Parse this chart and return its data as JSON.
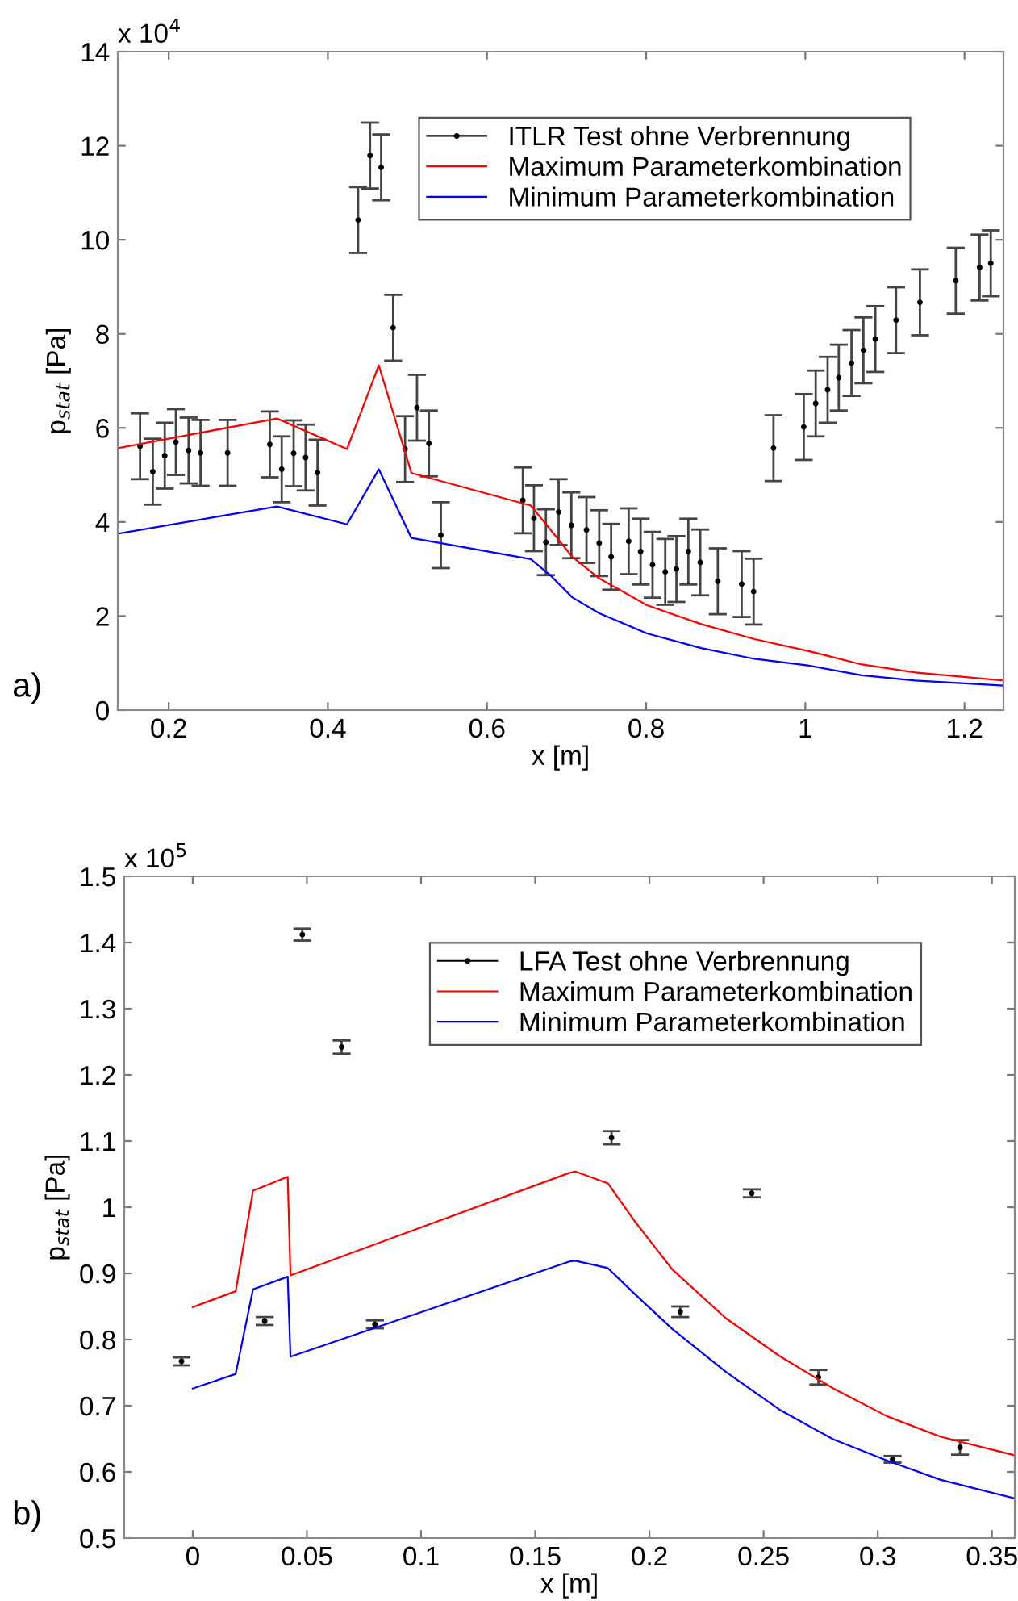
{
  "chart_data": [
    {
      "type": "line",
      "xlabel": "x [m]",
      "ylabel": "p$_{stat}$ [Pa]",
      "annotations": [
        "x 10$^{4}$",
        "a)"
      ],
      "xlim": [
        0.136,
        1.249
      ],
      "xticks": [
        0.2,
        0.4,
        0.6,
        0.8,
        1,
        1.2
      ],
      "ylim": [
        0,
        14
      ],
      "yticks": [
        0,
        2,
        4,
        6,
        8,
        10,
        12,
        14
      ],
      "grid": false,
      "legend": "top right",
      "series": [
        {
          "name": "ITLR Test ohne Verbrennung",
          "type": "scatter",
          "marker": "circle",
          "color": "#000000",
          "x": [
            0.164,
            0.18,
            0.195,
            0.209,
            0.225,
            0.24,
            0.274,
            0.327,
            0.342,
            0.357,
            0.372,
            0.387,
            0.438,
            0.453,
            0.467,
            0.482,
            0.497,
            0.512,
            0.527,
            0.542,
            0.645,
            0.659,
            0.674,
            0.69,
            0.706,
            0.725,
            0.741,
            0.756,
            0.778,
            0.793,
            0.808,
            0.824,
            0.838,
            0.853,
            0.868,
            0.89,
            0.92,
            0.935,
            0.96,
            0.998,
            1.013,
            1.028,
            1.042,
            1.058,
            1.073,
            1.088,
            1.114,
            1.144,
            1.189,
            1.219,
            1.233
          ],
          "values": [
            5.61,
            5.07,
            5.41,
            5.7,
            5.52,
            5.47,
            5.47,
            5.65,
            5.12,
            5.46,
            5.37,
            5.05,
            10.42,
            11.79,
            11.54,
            8.13,
            5.55,
            6.43,
            5.67,
            3.72,
            4.46,
            4.08,
            3.57,
            4.21,
            3.93,
            3.83,
            3.55,
            3.26,
            3.59,
            3.37,
            3.09,
            2.94,
            3.0,
            3.37,
            3.14,
            2.74,
            2.68,
            2.52,
            5.57,
            6.02,
            6.52,
            6.81,
            7.07,
            7.38,
            7.65,
            7.89,
            8.29,
            8.67,
            9.13,
            9.41,
            9.5
          ],
          "errors": [
            0.7,
            0.7,
            0.7,
            0.7,
            0.7,
            0.7,
            0.7,
            0.7,
            0.7,
            0.7,
            0.7,
            0.7,
            0.7,
            0.7,
            0.7,
            0.7,
            0.7,
            0.7,
            0.7,
            0.7,
            0.7,
            0.7,
            0.7,
            0.7,
            0.7,
            0.7,
            0.7,
            0.7,
            0.7,
            0.7,
            0.7,
            0.7,
            0.7,
            0.7,
            0.7,
            0.7,
            0.7,
            0.7,
            0.7,
            0.7,
            0.7,
            0.7,
            0.7,
            0.7,
            0.7,
            0.7,
            0.7,
            0.7,
            0.7,
            0.7,
            0.7
          ]
        },
        {
          "name": "Maximum Parameterkombination",
          "color": "#ff0000",
          "x": [
            0.136,
            0.336,
            0.424,
            0.464,
            0.505,
            0.655,
            0.68,
            0.707,
            0.741,
            0.801,
            0.869,
            0.936,
            1.003,
            1.071,
            1.138,
            1.249
          ],
          "values": [
            5.57,
            6.2,
            5.55,
            7.33,
            5.04,
            4.35,
            3.83,
            3.26,
            2.8,
            2.23,
            1.83,
            1.51,
            1.26,
            0.97,
            0.8,
            0.63
          ]
        },
        {
          "name": "Minimum Parameterkombination",
          "color": "#0000ff",
          "x": [
            0.136,
            0.336,
            0.424,
            0.464,
            0.505,
            0.655,
            0.68,
            0.707,
            0.741,
            0.801,
            0.869,
            0.936,
            1.003,
            1.071,
            1.138,
            1.249
          ],
          "values": [
            3.75,
            4.33,
            3.95,
            5.12,
            3.66,
            3.21,
            2.86,
            2.4,
            2.06,
            1.63,
            1.32,
            1.09,
            0.95,
            0.74,
            0.63,
            0.52
          ]
        }
      ]
    },
    {
      "type": "line",
      "xlabel": "x [m]",
      "ylabel": "p$_{stat}$ [Pa]",
      "annotations": [
        "x 10$^{5}$",
        "b)"
      ],
      "xlim": [
        -0.03,
        0.36
      ],
      "xticks": [
        0,
        0.05,
        0.1,
        0.15,
        0.2,
        0.25,
        0.3,
        0.35
      ],
      "ylim": [
        0.5,
        1.5
      ],
      "yticks": [
        0.5,
        0.6,
        0.7,
        0.8,
        0.9,
        1,
        1.1,
        1.2,
        1.3,
        1.4,
        1.5
      ],
      "grid": false,
      "legend": "top right",
      "series": [
        {
          "name": "LFA Test ohne Verbrennung",
          "type": "scatter",
          "marker": "circle",
          "color": "#000000",
          "x": [
            -0.0049,
            0.0315,
            0.048,
            0.0652,
            0.0798,
            0.1834,
            0.2135,
            0.2448,
            0.274,
            0.3065,
            0.336
          ],
          "values": [
            0.767,
            0.828,
            1.412,
            1.242,
            0.823,
            1.105,
            0.842,
            1.021,
            0.743,
            0.619,
            0.637
          ],
          "errors": [
            0.006,
            0.006,
            0.009,
            0.01,
            0.006,
            0.01,
            0.008,
            0.006,
            0.011,
            0.005,
            0.011
          ]
        },
        {
          "name": "Maximum Parameterkombination",
          "color": "#ff0000",
          "x": [
            0,
            0.0188,
            0.0264,
            0.0416,
            0.0428,
            0.165,
            0.1676,
            0.1818,
            0.1935,
            0.21,
            0.2335,
            0.257,
            0.2806,
            0.3041,
            0.3276,
            0.36
          ],
          "values": [
            0.849,
            0.873,
            1.025,
            1.046,
            0.897,
            1.052,
            1.054,
            1.036,
            0.979,
            0.906,
            0.832,
            0.775,
            0.726,
            0.684,
            0.653,
            0.625
          ]
        },
        {
          "name": "Minimum Parameterkombination",
          "color": "#0000ff",
          "x": [
            0,
            0.0188,
            0.0264,
            0.0416,
            0.0428,
            0.165,
            0.1676,
            0.1818,
            0.1935,
            0.21,
            0.2335,
            0.257,
            0.2806,
            0.3041,
            0.3276,
            0.36
          ],
          "values": [
            0.726,
            0.748,
            0.876,
            0.895,
            0.774,
            0.918,
            0.919,
            0.908,
            0.869,
            0.816,
            0.751,
            0.694,
            0.649,
            0.617,
            0.588,
            0.56
          ]
        }
      ]
    }
  ]
}
